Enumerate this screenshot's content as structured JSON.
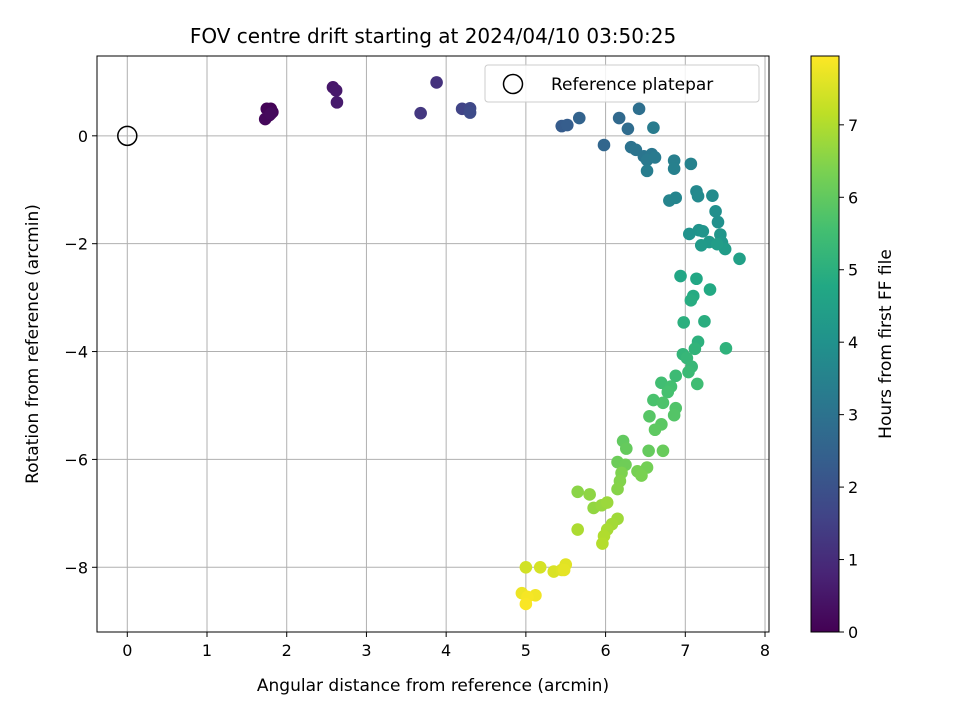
{
  "chart_data": {
    "type": "scatter",
    "title": "FOV centre drift starting at 2024/04/10 03:50:25",
    "xlabel": "Angular distance from reference (arcmin)",
    "ylabel": "Rotation from reference (arcmin)",
    "xlim": [
      -0.38,
      8.05
    ],
    "ylim": [
      -9.2,
      1.48
    ],
    "xticks": [
      0,
      1,
      2,
      3,
      4,
      5,
      6,
      7,
      8
    ],
    "yticks": [
      0,
      -2,
      -4,
      -6,
      -8
    ],
    "grid": true,
    "legend": {
      "position": "top-right",
      "entries": [
        "Reference platepar"
      ]
    },
    "reference_point": {
      "x": 0,
      "y": 0
    },
    "colorbar": {
      "label": "Hours from first FF file",
      "range": [
        0,
        7.95
      ],
      "ticks": [
        0,
        1,
        2,
        3,
        4,
        5,
        6,
        7
      ],
      "colormap": "viridis"
    },
    "points": [
      {
        "x": 1.8,
        "y": 0.5,
        "h": 0.05
      },
      {
        "x": 1.75,
        "y": 0.5,
        "h": 0.08
      },
      {
        "x": 1.82,
        "y": 0.44,
        "h": 0.1
      },
      {
        "x": 1.78,
        "y": 0.38,
        "h": 0.13
      },
      {
        "x": 1.73,
        "y": 0.31,
        "h": 0.16
      },
      {
        "x": 1.8,
        "y": 0.41,
        "h": 0.2
      },
      {
        "x": 2.58,
        "y": 0.9,
        "h": 0.5
      },
      {
        "x": 2.62,
        "y": 0.84,
        "h": 0.55
      },
      {
        "x": 2.63,
        "y": 0.62,
        "h": 0.6
      },
      {
        "x": 3.88,
        "y": 0.99,
        "h": 1.15
      },
      {
        "x": 3.68,
        "y": 0.42,
        "h": 1.3
      },
      {
        "x": 4.2,
        "y": 0.5,
        "h": 1.6
      },
      {
        "x": 4.3,
        "y": 0.51,
        "h": 1.7
      },
      {
        "x": 4.3,
        "y": 0.43,
        "h": 1.8
      },
      {
        "x": 5.45,
        "y": 0.18,
        "h": 2.3
      },
      {
        "x": 5.52,
        "y": 0.2,
        "h": 2.35
      },
      {
        "x": 5.67,
        "y": 0.33,
        "h": 2.5
      },
      {
        "x": 5.98,
        "y": -0.17,
        "h": 2.6
      },
      {
        "x": 6.17,
        "y": 0.33,
        "h": 2.7
      },
      {
        "x": 6.28,
        "y": 0.13,
        "h": 2.8
      },
      {
        "x": 6.42,
        "y": 0.5,
        "h": 2.9
      },
      {
        "x": 6.32,
        "y": -0.21,
        "h": 3.0
      },
      {
        "x": 6.38,
        "y": -0.26,
        "h": 3.05
      },
      {
        "x": 6.48,
        "y": -0.38,
        "h": 3.1
      },
      {
        "x": 6.58,
        "y": -0.34,
        "h": 3.15
      },
      {
        "x": 6.52,
        "y": -0.45,
        "h": 3.2
      },
      {
        "x": 6.62,
        "y": -0.4,
        "h": 3.25
      },
      {
        "x": 6.6,
        "y": 0.15,
        "h": 3.3
      },
      {
        "x": 6.52,
        "y": -0.65,
        "h": 3.35
      },
      {
        "x": 6.86,
        "y": -0.46,
        "h": 3.4
      },
      {
        "x": 6.86,
        "y": -0.61,
        "h": 3.45
      },
      {
        "x": 7.07,
        "y": -0.52,
        "h": 3.5
      },
      {
        "x": 6.8,
        "y": -1.2,
        "h": 3.55
      },
      {
        "x": 6.88,
        "y": -1.15,
        "h": 3.6
      },
      {
        "x": 7.14,
        "y": -1.03,
        "h": 3.7
      },
      {
        "x": 7.16,
        "y": -1.12,
        "h": 3.75
      },
      {
        "x": 7.34,
        "y": -1.11,
        "h": 3.8
      },
      {
        "x": 7.38,
        "y": -1.4,
        "h": 3.9
      },
      {
        "x": 7.41,
        "y": -1.6,
        "h": 3.95
      },
      {
        "x": 7.05,
        "y": -1.82,
        "h": 4.0
      },
      {
        "x": 7.17,
        "y": -1.75,
        "h": 4.05
      },
      {
        "x": 7.22,
        "y": -1.77,
        "h": 4.1
      },
      {
        "x": 7.44,
        "y": -1.83,
        "h": 4.15
      },
      {
        "x": 7.46,
        "y": -1.98,
        "h": 4.2
      },
      {
        "x": 7.3,
        "y": -1.97,
        "h": 4.25
      },
      {
        "x": 7.2,
        "y": -2.03,
        "h": 4.3
      },
      {
        "x": 7.5,
        "y": -2.1,
        "h": 4.35
      },
      {
        "x": 7.4,
        "y": -2.01,
        "h": 4.4
      },
      {
        "x": 7.68,
        "y": -2.28,
        "h": 4.5
      },
      {
        "x": 6.94,
        "y": -2.6,
        "h": 4.7
      },
      {
        "x": 7.14,
        "y": -2.65,
        "h": 4.75
      },
      {
        "x": 7.31,
        "y": -2.85,
        "h": 4.8
      },
      {
        "x": 7.1,
        "y": -2.97,
        "h": 4.85
      },
      {
        "x": 7.07,
        "y": -3.05,
        "h": 4.9
      },
      {
        "x": 7.24,
        "y": -3.44,
        "h": 4.95
      },
      {
        "x": 6.98,
        "y": -3.46,
        "h": 5.0
      },
      {
        "x": 7.16,
        "y": -3.82,
        "h": 5.05
      },
      {
        "x": 7.51,
        "y": -3.94,
        "h": 5.1
      },
      {
        "x": 7.12,
        "y": -3.95,
        "h": 5.15
      },
      {
        "x": 6.97,
        "y": -4.05,
        "h": 5.2
      },
      {
        "x": 7.02,
        "y": -4.12,
        "h": 5.25
      },
      {
        "x": 7.08,
        "y": -4.28,
        "h": 5.3
      },
      {
        "x": 7.04,
        "y": -4.38,
        "h": 5.35
      },
      {
        "x": 6.88,
        "y": -4.45,
        "h": 5.4
      },
      {
        "x": 7.15,
        "y": -4.6,
        "h": 5.45
      },
      {
        "x": 6.7,
        "y": -4.58,
        "h": 5.5
      },
      {
        "x": 6.82,
        "y": -4.65,
        "h": 5.55
      },
      {
        "x": 6.78,
        "y": -4.75,
        "h": 5.6
      },
      {
        "x": 6.6,
        "y": -4.9,
        "h": 5.65
      },
      {
        "x": 6.72,
        "y": -4.95,
        "h": 5.7
      },
      {
        "x": 6.88,
        "y": -5.05,
        "h": 5.75
      },
      {
        "x": 6.86,
        "y": -5.18,
        "h": 5.8
      },
      {
        "x": 6.55,
        "y": -5.2,
        "h": 5.85
      },
      {
        "x": 6.7,
        "y": -5.35,
        "h": 5.9
      },
      {
        "x": 6.62,
        "y": -5.45,
        "h": 5.95
      },
      {
        "x": 6.22,
        "y": -5.66,
        "h": 6.0
      },
      {
        "x": 6.26,
        "y": -5.8,
        "h": 6.05
      },
      {
        "x": 6.54,
        "y": -5.84,
        "h": 6.05
      },
      {
        "x": 6.72,
        "y": -5.84,
        "h": 6.1
      },
      {
        "x": 6.15,
        "y": -6.05,
        "h": 6.15
      },
      {
        "x": 6.25,
        "y": -6.1,
        "h": 6.2
      },
      {
        "x": 6.52,
        "y": -6.15,
        "h": 6.25
      },
      {
        "x": 6.4,
        "y": -6.22,
        "h": 6.3
      },
      {
        "x": 6.45,
        "y": -6.3,
        "h": 6.35
      },
      {
        "x": 6.2,
        "y": -6.25,
        "h": 6.4
      },
      {
        "x": 6.18,
        "y": -6.4,
        "h": 6.45
      },
      {
        "x": 6.15,
        "y": -6.55,
        "h": 6.5
      },
      {
        "x": 5.65,
        "y": -6.6,
        "h": 6.55
      },
      {
        "x": 5.8,
        "y": -6.65,
        "h": 6.6
      },
      {
        "x": 5.85,
        "y": -6.9,
        "h": 6.65
      },
      {
        "x": 5.95,
        "y": -6.85,
        "h": 6.7
      },
      {
        "x": 6.02,
        "y": -6.8,
        "h": 6.75
      },
      {
        "x": 6.15,
        "y": -7.1,
        "h": 6.8
      },
      {
        "x": 6.08,
        "y": -7.2,
        "h": 6.85
      },
      {
        "x": 6.02,
        "y": -7.3,
        "h": 6.9
      },
      {
        "x": 5.65,
        "y": -7.3,
        "h": 6.95
      },
      {
        "x": 5.98,
        "y": -7.42,
        "h": 7.0
      },
      {
        "x": 5.96,
        "y": -7.56,
        "h": 7.05
      },
      {
        "x": 5.0,
        "y": -8.0,
        "h": 7.4
      },
      {
        "x": 5.18,
        "y": -8.0,
        "h": 7.45
      },
      {
        "x": 5.35,
        "y": -8.08,
        "h": 7.5
      },
      {
        "x": 5.45,
        "y": -8.05,
        "h": 7.55
      },
      {
        "x": 5.5,
        "y": -7.95,
        "h": 7.6
      },
      {
        "x": 5.48,
        "y": -8.05,
        "h": 7.65
      },
      {
        "x": 4.95,
        "y": -8.48,
        "h": 7.75
      },
      {
        "x": 5.12,
        "y": -8.52,
        "h": 7.8
      },
      {
        "x": 5.02,
        "y": -8.55,
        "h": 7.85
      },
      {
        "x": 5.0,
        "y": -8.68,
        "h": 7.9
      }
    ]
  }
}
